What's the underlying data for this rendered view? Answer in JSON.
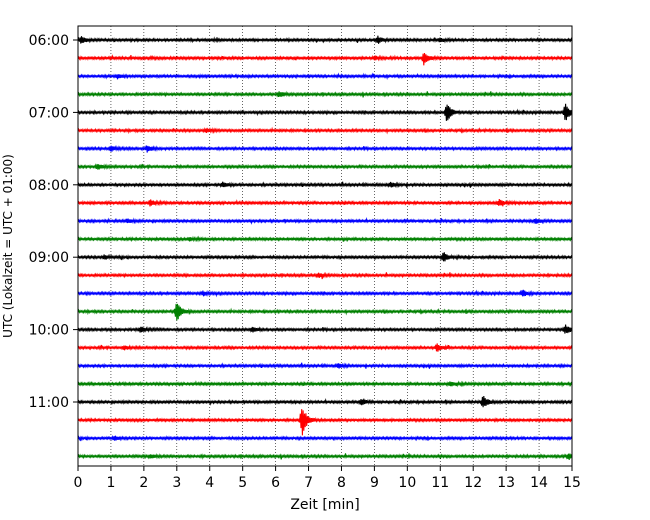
{
  "chart_data": {
    "type": "line",
    "subtype": "helicorder",
    "xlabel": "Zeit  [min]",
    "ylabel": "UTC (Lokalzeit = UTC + 01:00)",
    "xlim": [
      0,
      15
    ],
    "xticks": [
      "0",
      "1",
      "2",
      "3",
      "4",
      "5",
      "6",
      "7",
      "8",
      "9",
      "10",
      "11",
      "12",
      "13",
      "14",
      "15"
    ],
    "start_time": "06:00",
    "row_interval_min": 15,
    "ytick_labels": [
      "06:00",
      "07:00",
      "08:00",
      "09:00",
      "10:00",
      "11:00"
    ],
    "vertical_grid": true,
    "grid_style": "dotted",
    "line_colors": [
      "#000000",
      "#ff0000",
      "#0000ff",
      "#008000"
    ],
    "rows": [
      {
        "time": "06:00",
        "color": "#000000",
        "events": [
          {
            "t": 0.1,
            "amp": 0.35
          },
          {
            "t": 9.1,
            "amp": 0.35
          },
          {
            "t": 11.0,
            "amp": 0.2
          }
        ]
      },
      {
        "time": "06:15",
        "color": "#ff0000",
        "events": [
          {
            "t": 10.5,
            "amp": 0.6
          },
          {
            "t": 9.0,
            "amp": 0.2
          }
        ]
      },
      {
        "time": "06:30",
        "color": "#0000ff",
        "events": [
          {
            "t": 1.2,
            "amp": 0.2
          }
        ]
      },
      {
        "time": "06:45",
        "color": "#008000",
        "events": [
          {
            "t": 6.1,
            "amp": 0.3
          }
        ]
      },
      {
        "time": "07:00",
        "color": "#000000",
        "events": [
          {
            "t": 11.2,
            "amp": 1.0
          },
          {
            "t": 14.8,
            "amp": 0.85
          }
        ]
      },
      {
        "time": "07:15",
        "color": "#ff0000",
        "events": [
          {
            "t": 3.9,
            "amp": 0.2
          }
        ]
      },
      {
        "time": "07:30",
        "color": "#0000ff",
        "events": [
          {
            "t": 1.0,
            "amp": 0.3
          },
          {
            "t": 2.1,
            "amp": 0.3
          }
        ]
      },
      {
        "time": "07:45",
        "color": "#008000",
        "events": [
          {
            "t": 0.6,
            "amp": 0.3
          }
        ]
      },
      {
        "time": "08:00",
        "color": "#000000",
        "events": [
          {
            "t": 4.4,
            "amp": 0.25
          },
          {
            "t": 9.5,
            "amp": 0.25
          }
        ]
      },
      {
        "time": "08:15",
        "color": "#ff0000",
        "events": [
          {
            "t": 2.2,
            "amp": 0.3
          },
          {
            "t": 12.8,
            "amp": 0.3
          }
        ]
      },
      {
        "time": "08:30",
        "color": "#0000ff",
        "events": [
          {
            "t": 1.5,
            "amp": 0.2
          },
          {
            "t": 13.9,
            "amp": 0.25
          }
        ]
      },
      {
        "time": "08:45",
        "color": "#008000",
        "events": [
          {
            "t": 3.4,
            "amp": 0.2
          }
        ]
      },
      {
        "time": "09:00",
        "color": "#000000",
        "events": [
          {
            "t": 11.1,
            "amp": 0.5
          },
          {
            "t": 0.8,
            "amp": 0.2
          }
        ]
      },
      {
        "time": "09:15",
        "color": "#ff0000",
        "events": [
          {
            "t": 7.3,
            "amp": 0.2
          }
        ]
      },
      {
        "time": "09:30",
        "color": "#0000ff",
        "events": [
          {
            "t": 13.5,
            "amp": 0.3
          },
          {
            "t": 3.8,
            "amp": 0.2
          }
        ]
      },
      {
        "time": "09:45",
        "color": "#008000",
        "events": [
          {
            "t": 3.0,
            "amp": 1.0
          }
        ]
      },
      {
        "time": "10:00",
        "color": "#000000",
        "events": [
          {
            "t": 1.9,
            "amp": 0.3
          },
          {
            "t": 14.8,
            "amp": 0.45
          },
          {
            "t": 5.3,
            "amp": 0.25
          }
        ]
      },
      {
        "time": "10:15",
        "color": "#ff0000",
        "events": [
          {
            "t": 10.9,
            "amp": 0.35
          },
          {
            "t": 1.4,
            "amp": 0.2
          }
        ]
      },
      {
        "time": "10:30",
        "color": "#0000ff",
        "events": [
          {
            "t": 7.9,
            "amp": 0.2
          }
        ]
      },
      {
        "time": "10:45",
        "color": "#008000",
        "events": [
          {
            "t": 11.3,
            "amp": 0.2
          }
        ]
      },
      {
        "time": "11:00",
        "color": "#000000",
        "events": [
          {
            "t": 12.3,
            "amp": 0.6
          },
          {
            "t": 8.6,
            "amp": 0.3
          }
        ]
      },
      {
        "time": "11:15",
        "color": "#ff0000",
        "events": [
          {
            "t": 6.8,
            "amp": 1.6
          }
        ]
      },
      {
        "time": "11:30",
        "color": "#0000ff",
        "events": [
          {
            "t": 1.1,
            "amp": 0.2
          }
        ]
      },
      {
        "time": "11:45",
        "color": "#008000",
        "events": [
          {
            "t": 2.2,
            "amp": 0.2
          },
          {
            "t": 14.9,
            "amp": 0.3
          }
        ]
      }
    ]
  }
}
